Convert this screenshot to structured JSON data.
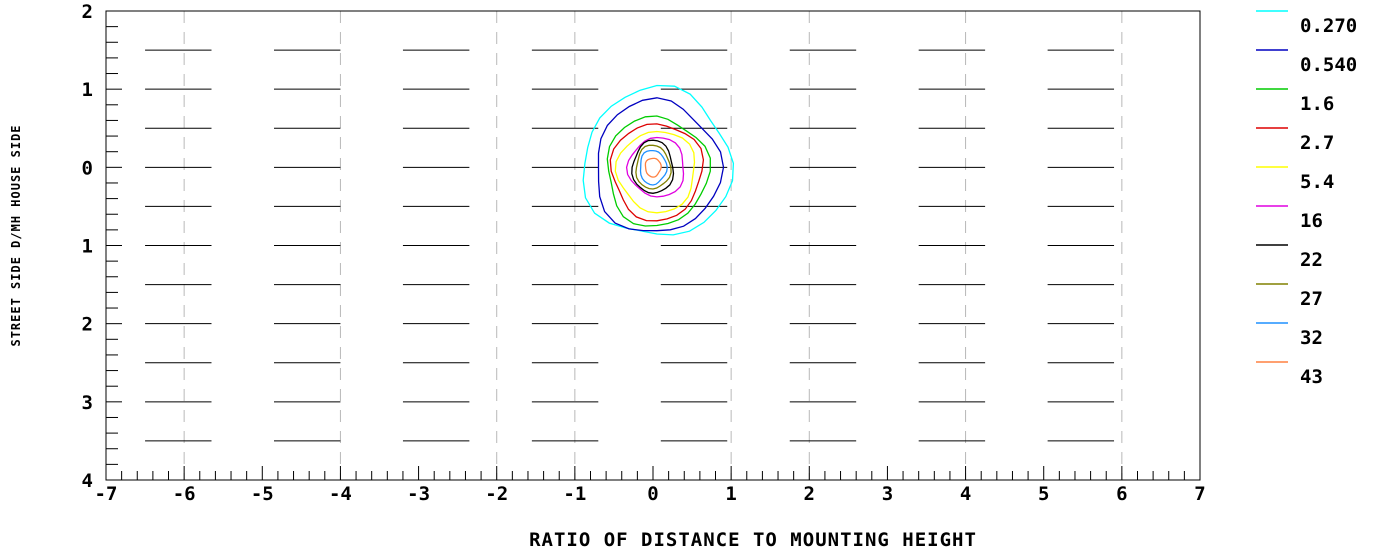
{
  "chart_data": {
    "type": "contour",
    "xlabel": "RATIO OF DISTANCE TO MOUNTING HEIGHT",
    "ylabel": "STREET SIDE  D/MH  HOUSE SIDE",
    "xlim": [
      -7,
      7
    ],
    "ylim": [
      4,
      -2
    ],
    "x_ticks": [
      -7,
      -6,
      -5,
      -4,
      -3,
      -2,
      -1,
      0,
      1,
      2,
      3,
      4,
      5,
      6,
      7
    ],
    "y_ticks": [
      -2,
      -1,
      0,
      1,
      2,
      3,
      4
    ],
    "y_tick_labels": [
      "2",
      "1",
      "0",
      "1",
      "2",
      "3",
      "4"
    ],
    "x_gridlines_dashed": [
      -6,
      -4,
      -2,
      -1,
      1,
      2,
      4,
      6
    ],
    "roadway_dash_rows": [
      -1.5,
      -1,
      -0.5,
      0,
      0.5,
      1,
      1.5,
      2,
      2.5,
      3,
      3.5
    ],
    "legend_position": "right",
    "center": [
      0,
      0
    ],
    "contours": [
      {
        "level": "0.270",
        "color": "#00ffff",
        "rx": 0.95,
        "ry": 0.95,
        "cx": 0.05,
        "cy": -0.05
      },
      {
        "level": "0.540",
        "color": "#0000c0",
        "rx": 0.8,
        "ry": 0.85,
        "cx": 0.05,
        "cy": 0.0
      },
      {
        "level": "1.6",
        "color": "#00cc00",
        "rx": 0.65,
        "ry": 0.7,
        "cx": 0.05,
        "cy": 0.05
      },
      {
        "level": "2.7",
        "color": "#dd0000",
        "rx": 0.58,
        "ry": 0.62,
        "cx": 0.05,
        "cy": 0.05
      },
      {
        "level": "5.4",
        "color": "#ffff00",
        "rx": 0.5,
        "ry": 0.52,
        "cx": 0.05,
        "cy": 0.05
      },
      {
        "level": "16",
        "color": "#e000e0",
        "rx": 0.36,
        "ry": 0.38,
        "cx": 0.05,
        "cy": 0.0
      },
      {
        "level": "22",
        "color": "#000000",
        "rx": 0.26,
        "ry": 0.34,
        "cx": 0.0,
        "cy": 0.0
      },
      {
        "level": "27",
        "color": "#808000",
        "rx": 0.22,
        "ry": 0.28,
        "cx": 0.0,
        "cy": 0.0
      },
      {
        "level": "32",
        "color": "#1e90ff",
        "rx": 0.17,
        "ry": 0.22,
        "cx": 0.0,
        "cy": 0.0
      },
      {
        "level": "43",
        "color": "#ff8040",
        "rx": 0.1,
        "ry": 0.12,
        "cx": 0.0,
        "cy": 0.0
      }
    ]
  }
}
